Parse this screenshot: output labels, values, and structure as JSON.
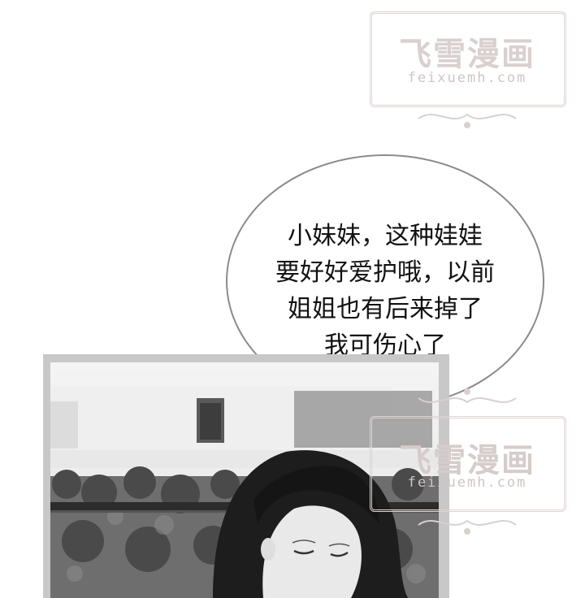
{
  "watermarks": [
    {
      "title": "飞雪漫画",
      "url": "feixuemh.com"
    },
    {
      "title": "飞雪漫画",
      "url": "feixuemh.com"
    }
  ],
  "speech_bubble": {
    "lines": [
      "小妹妹，这种娃娃",
      "要好好爱护哦，以前",
      "姐姐也有后来掉了",
      "我可伤心了"
    ]
  },
  "colors": {
    "watermark": "#d9d0cf",
    "bubble_border": "#8a8a8a",
    "photo_frame": "#c8c8c8"
  }
}
